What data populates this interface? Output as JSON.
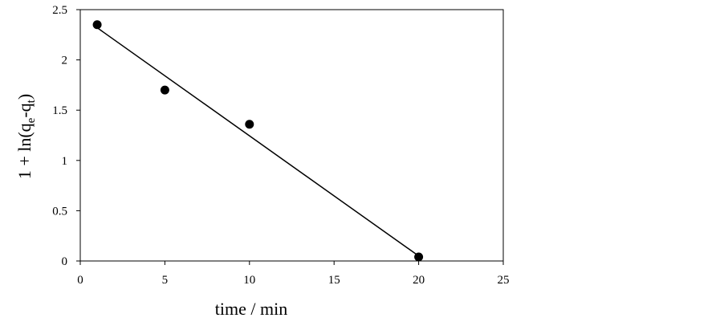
{
  "chart_data": {
    "type": "scatter",
    "x_label": "time / min",
    "y_label": [
      "1 + ln(q",
      "e",
      "-q",
      "t",
      ")"
    ],
    "series": [
      {
        "color": "#000000",
        "x": [
          1,
          5,
          10,
          20
        ],
        "values": [
          2.35,
          1.7,
          1.36,
          0.04
        ]
      }
    ],
    "trendline": {
      "color": "#000000",
      "x": [
        1,
        20
      ],
      "values": [
        2.32,
        0.05
      ]
    },
    "xlim": [
      0,
      25
    ],
    "ylim": [
      0,
      2.5
    ],
    "xticks": [
      0,
      5,
      10,
      15,
      20,
      25
    ],
    "yticks": [
      0,
      0.5,
      1,
      1.5,
      2,
      2.5
    ],
    "grid": false
  }
}
